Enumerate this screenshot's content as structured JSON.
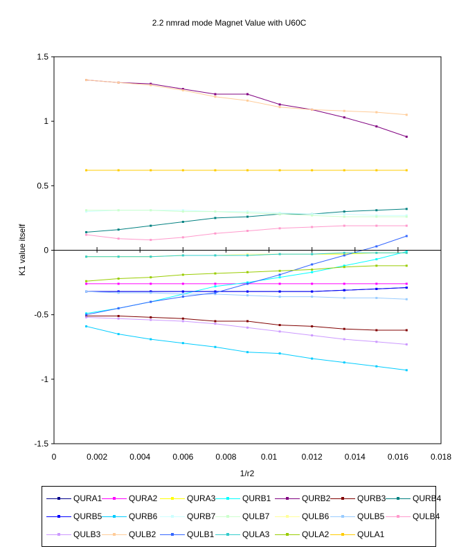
{
  "chart_data": {
    "type": "line",
    "title": "2.2 nmrad mode Magnet Value with U60C",
    "xlabel": "1/r2",
    "ylabel": "K1 value itself",
    "xlim": [
      0,
      0.018
    ],
    "ylim": [
      -1.5,
      1.5
    ],
    "xticks": [
      "0",
      "0.002",
      "0.004",
      "0.006",
      "0.008",
      "0.01",
      "0.012",
      "0.014",
      "0.016",
      "0.018"
    ],
    "yticks": [
      "1.5",
      "1",
      "0.5",
      "0",
      "-0.5",
      "-1",
      "-1.5"
    ],
    "grid": false,
    "legend_position": "bottom",
    "x": [
      0.0015,
      0.003,
      0.0045,
      0.006,
      0.0075,
      0.009,
      0.0105,
      0.012,
      0.0135,
      0.015,
      0.0164
    ],
    "series": [
      {
        "name": "QURA1",
        "color": "#00008b",
        "values": [
          -0.32,
          -0.32,
          -0.32,
          -0.32,
          -0.32,
          -0.32,
          -0.32,
          -0.32,
          -0.31,
          -0.3,
          -0.29
        ]
      },
      {
        "name": "QURA2",
        "color": "#ff00ff",
        "values": [
          -0.26,
          -0.26,
          -0.26,
          -0.26,
          -0.26,
          -0.26,
          -0.26,
          -0.26,
          -0.26,
          -0.26,
          -0.26
        ]
      },
      {
        "name": "QURA3",
        "color": "#ffff00",
        "values": [
          -0.05,
          -0.05,
          -0.05,
          -0.04,
          -0.04,
          -0.04,
          -0.03,
          -0.03,
          -0.03,
          -0.02,
          -0.02
        ]
      },
      {
        "name": "QURB1",
        "color": "#00ffff",
        "values": [
          -0.49,
          -0.45,
          -0.4,
          -0.34,
          -0.28,
          -0.25,
          -0.21,
          -0.17,
          -0.12,
          -0.07,
          -0.01
        ]
      },
      {
        "name": "QURB2",
        "color": "#800080",
        "values": [
          1.32,
          1.3,
          1.29,
          1.25,
          1.21,
          1.21,
          1.13,
          1.09,
          1.03,
          0.96,
          0.88
        ]
      },
      {
        "name": "QURB3",
        "color": "#800000",
        "values": [
          -0.51,
          -0.51,
          -0.52,
          -0.53,
          -0.55,
          -0.55,
          -0.58,
          -0.59,
          -0.61,
          -0.62,
          -0.62
        ]
      },
      {
        "name": "QURB4",
        "color": "#008080",
        "values": [
          0.14,
          0.16,
          0.19,
          0.22,
          0.25,
          0.26,
          0.28,
          0.28,
          0.3,
          0.31,
          0.32
        ]
      },
      {
        "name": "QURB5",
        "color": "#0000ff",
        "values": [
          -0.32,
          -0.32,
          -0.32,
          -0.32,
          -0.32,
          -0.32,
          -0.32,
          -0.32,
          -0.31,
          -0.3,
          -0.29
        ]
      },
      {
        "name": "QURB6",
        "color": "#00ccff",
        "values": [
          -0.59,
          -0.65,
          -0.69,
          -0.72,
          -0.75,
          -0.79,
          -0.8,
          -0.84,
          -0.87,
          -0.9,
          -0.93
        ]
      },
      {
        "name": "QURB7",
        "color": "#ccffff",
        "values": [
          0.3,
          0.31,
          0.31,
          0.31,
          0.3,
          0.3,
          0.29,
          0.28,
          0.28,
          0.27,
          0.27
        ]
      },
      {
        "name": "QULB7",
        "color": "#ccffcc",
        "values": [
          0.31,
          0.31,
          0.31,
          0.3,
          0.3,
          0.29,
          0.28,
          0.27,
          0.26,
          0.26,
          0.26
        ]
      },
      {
        "name": "QULB6",
        "color": "#ffff99",
        "values": [
          -0.05,
          -0.05,
          -0.05,
          -0.04,
          -0.04,
          -0.03,
          -0.03,
          -0.03,
          -0.02,
          -0.02,
          -0.02
        ]
      },
      {
        "name": "QULB5",
        "color": "#99ccff",
        "values": [
          -0.32,
          -0.33,
          -0.33,
          -0.34,
          -0.34,
          -0.35,
          -0.36,
          -0.36,
          -0.37,
          -0.37,
          -0.38
        ]
      },
      {
        "name": "QULB4",
        "color": "#ff99cc",
        "values": [
          0.12,
          0.09,
          0.08,
          0.1,
          0.13,
          0.15,
          0.17,
          0.18,
          0.19,
          0.19,
          0.19
        ]
      },
      {
        "name": "QULB3",
        "color": "#cc99ff",
        "values": [
          -0.52,
          -0.53,
          -0.54,
          -0.55,
          -0.57,
          -0.6,
          -0.63,
          -0.66,
          -0.69,
          -0.71,
          -0.73
        ]
      },
      {
        "name": "QULB2",
        "color": "#ffcc99",
        "values": [
          1.32,
          1.3,
          1.28,
          1.24,
          1.19,
          1.16,
          1.11,
          1.09,
          1.08,
          1.07,
          1.05
        ]
      },
      {
        "name": "QULB1",
        "color": "#3366ff",
        "values": [
          -0.5,
          -0.45,
          -0.4,
          -0.36,
          -0.33,
          -0.26,
          -0.19,
          -0.11,
          -0.04,
          0.03,
          0.11
        ]
      },
      {
        "name": "QULA3",
        "color": "#33cccc",
        "values": [
          -0.05,
          -0.05,
          -0.05,
          -0.04,
          -0.04,
          -0.04,
          -0.03,
          -0.03,
          -0.02,
          -0.02,
          -0.02
        ]
      },
      {
        "name": "QULA2",
        "color": "#99cc00",
        "values": [
          -0.24,
          -0.22,
          -0.21,
          -0.19,
          -0.18,
          -0.17,
          -0.16,
          -0.15,
          -0.13,
          -0.12,
          -0.12
        ]
      },
      {
        "name": "QULA1",
        "color": "#ffcc00",
        "values": [
          0.62,
          0.62,
          0.62,
          0.62,
          0.62,
          0.62,
          0.62,
          0.62,
          0.62,
          0.62,
          0.62
        ]
      }
    ]
  }
}
